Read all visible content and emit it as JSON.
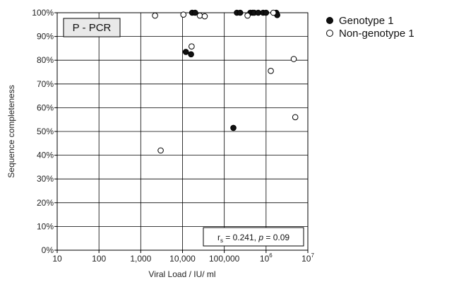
{
  "chart_data": {
    "type": "scatter",
    "panel_label": "P - PCR",
    "xlabel": "Viral Load / IU/ ml",
    "ylabel": "Sequence completeness",
    "xscale": "log",
    "xlim": [
      10,
      10000000
    ],
    "ylim": [
      0,
      100
    ],
    "x_tick_labels": [
      "10",
      "100",
      "1,000",
      "10,000",
      "100,000",
      "10",
      "10"
    ],
    "x_tick_exponents": [
      "",
      "",
      "",
      "",
      "",
      "6",
      "7"
    ],
    "y_tick_labels": [
      "0%",
      "10%",
      "20%",
      "30%",
      "40%",
      "50%",
      "60%",
      "70%",
      "80%",
      "90%",
      "100%"
    ],
    "grid": true,
    "legend_position": "right-top",
    "annotation": {
      "r_symbol": "r",
      "r_subscript": "s",
      "r_value": " = 0.241, ",
      "p_symbol": "p",
      "p_value": " = 0.09"
    },
    "series": [
      {
        "name": "Genotype 1",
        "fill": "#111111",
        "points": [
          [
            12000,
            83.5
          ],
          [
            16000,
            82.5
          ],
          [
            17000,
            100
          ],
          [
            20000,
            100
          ],
          [
            165000,
            51.5
          ],
          [
            200000,
            100
          ],
          [
            240000,
            100
          ],
          [
            420000,
            100
          ],
          [
            480000,
            100
          ],
          [
            520000,
            100
          ],
          [
            650000,
            100
          ],
          [
            850000,
            100
          ],
          [
            1000000,
            100
          ],
          [
            1750000,
            100
          ],
          [
            1850000,
            99
          ]
        ]
      },
      {
        "name": "Non-genotype 1",
        "fill": "#ffffff",
        "points": [
          [
            2200,
            98.8
          ],
          [
            3000,
            42
          ],
          [
            10500,
            99.2
          ],
          [
            16500,
            85.8
          ],
          [
            26000,
            98.8
          ],
          [
            34000,
            98.5
          ],
          [
            360000,
            98.8
          ],
          [
            1300000,
            75.5
          ],
          [
            1500000,
            100
          ],
          [
            4600000,
            80.5
          ],
          [
            5000000,
            56
          ]
        ]
      }
    ]
  }
}
